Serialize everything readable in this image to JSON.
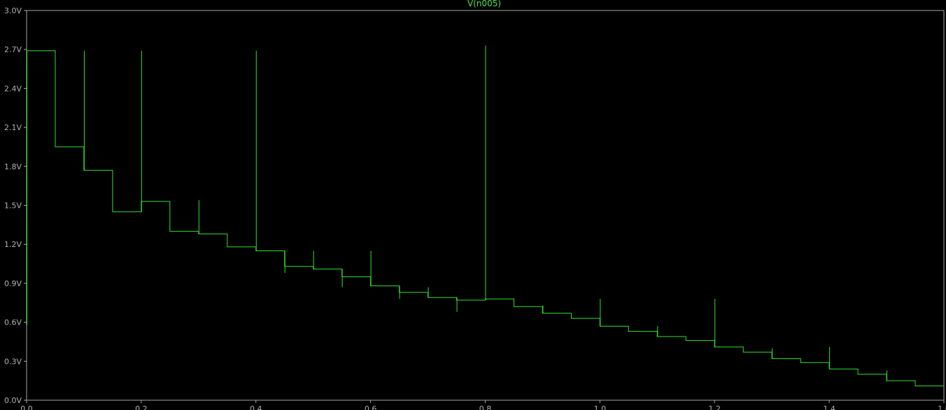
{
  "window": {
    "title": "V(n005)"
  },
  "colors": {
    "background": "#000000",
    "trace": "#30e030",
    "frame": "#a8a8a8",
    "text": "#b0b0b0",
    "title": "#4de14d"
  },
  "chart_data": {
    "type": "line",
    "title": "",
    "xlabel": "",
    "ylabel": "",
    "xlim": [
      0,
      1.6
    ],
    "ylim": [
      0,
      3.0
    ],
    "grid": false,
    "legend": "top-center",
    "y_ticks": [
      {
        "value": 0.0,
        "label": "0.0V"
      },
      {
        "value": 0.3,
        "label": "0.3V"
      },
      {
        "value": 0.6,
        "label": "0.6V"
      },
      {
        "value": 0.9,
        "label": "0.9V"
      },
      {
        "value": 1.2,
        "label": "1.2V"
      },
      {
        "value": 1.5,
        "label": "1.5V"
      },
      {
        "value": 1.8,
        "label": "1.8V"
      },
      {
        "value": 2.1,
        "label": "2.1V"
      },
      {
        "value": 2.4,
        "label": "2.4V"
      },
      {
        "value": 2.7,
        "label": "2.7V"
      },
      {
        "value": 3.0,
        "label": "3.0V"
      }
    ],
    "x_ticks": [
      {
        "value": 0.0,
        "label": "0.0"
      },
      {
        "value": 0.2,
        "label": "0.2"
      },
      {
        "value": 0.4,
        "label": "0.4"
      },
      {
        "value": 0.6,
        "label": "0.6"
      },
      {
        "value": 0.8,
        "label": "0.8"
      },
      {
        "value": 1.0,
        "label": "1.0"
      },
      {
        "value": 1.2,
        "label": "1.2"
      },
      {
        "value": 1.4,
        "label": "1.4"
      },
      {
        "value": 1.6,
        "label": "1.6"
      }
    ],
    "series": [
      {
        "name": "V(n005)",
        "step_starts": [
          0.0,
          0.05,
          0.1,
          0.15,
          0.2,
          0.25,
          0.3,
          0.35,
          0.4,
          0.45,
          0.5,
          0.55,
          0.6,
          0.65,
          0.7,
          0.75,
          0.8,
          0.85,
          0.9,
          0.95,
          1.0,
          1.05,
          1.1,
          1.15,
          1.2,
          1.25,
          1.3,
          1.35,
          1.4,
          1.45,
          1.5,
          1.55,
          1.6
        ],
        "levels": [
          2.69,
          1.95,
          1.77,
          1.45,
          1.53,
          1.3,
          1.28,
          1.18,
          1.15,
          1.03,
          1.01,
          0.95,
          0.88,
          0.83,
          0.79,
          0.77,
          0.78,
          0.72,
          0.67,
          0.63,
          0.57,
          0.53,
          0.49,
          0.46,
          0.41,
          0.37,
          0.32,
          0.29,
          0.24,
          0.2,
          0.15,
          0.11
        ],
        "spikes": [
          {
            "x": 0.0,
            "y": 0.58
          },
          {
            "x": 0.1,
            "y": 2.69
          },
          {
            "x": 0.2,
            "y": 2.69
          },
          {
            "x": 0.3,
            "y": 1.54
          },
          {
            "x": 0.4,
            "y": 2.69
          },
          {
            "x": 0.45,
            "y": 0.98
          },
          {
            "x": 0.5,
            "y": 1.15
          },
          {
            "x": 0.55,
            "y": 0.87
          },
          {
            "x": 0.6,
            "y": 1.15
          },
          {
            "x": 0.65,
            "y": 0.78
          },
          {
            "x": 0.7,
            "y": 0.87
          },
          {
            "x": 0.75,
            "y": 0.68
          },
          {
            "x": 0.8,
            "y": 2.73
          },
          {
            "x": 0.9,
            "y": 0.73
          },
          {
            "x": 1.0,
            "y": 0.78
          },
          {
            "x": 1.1,
            "y": 0.57
          },
          {
            "x": 1.2,
            "y": 0.78
          },
          {
            "x": 1.3,
            "y": 0.4
          },
          {
            "x": 1.4,
            "y": 0.41
          },
          {
            "x": 1.5,
            "y": 0.23
          }
        ]
      }
    ]
  }
}
